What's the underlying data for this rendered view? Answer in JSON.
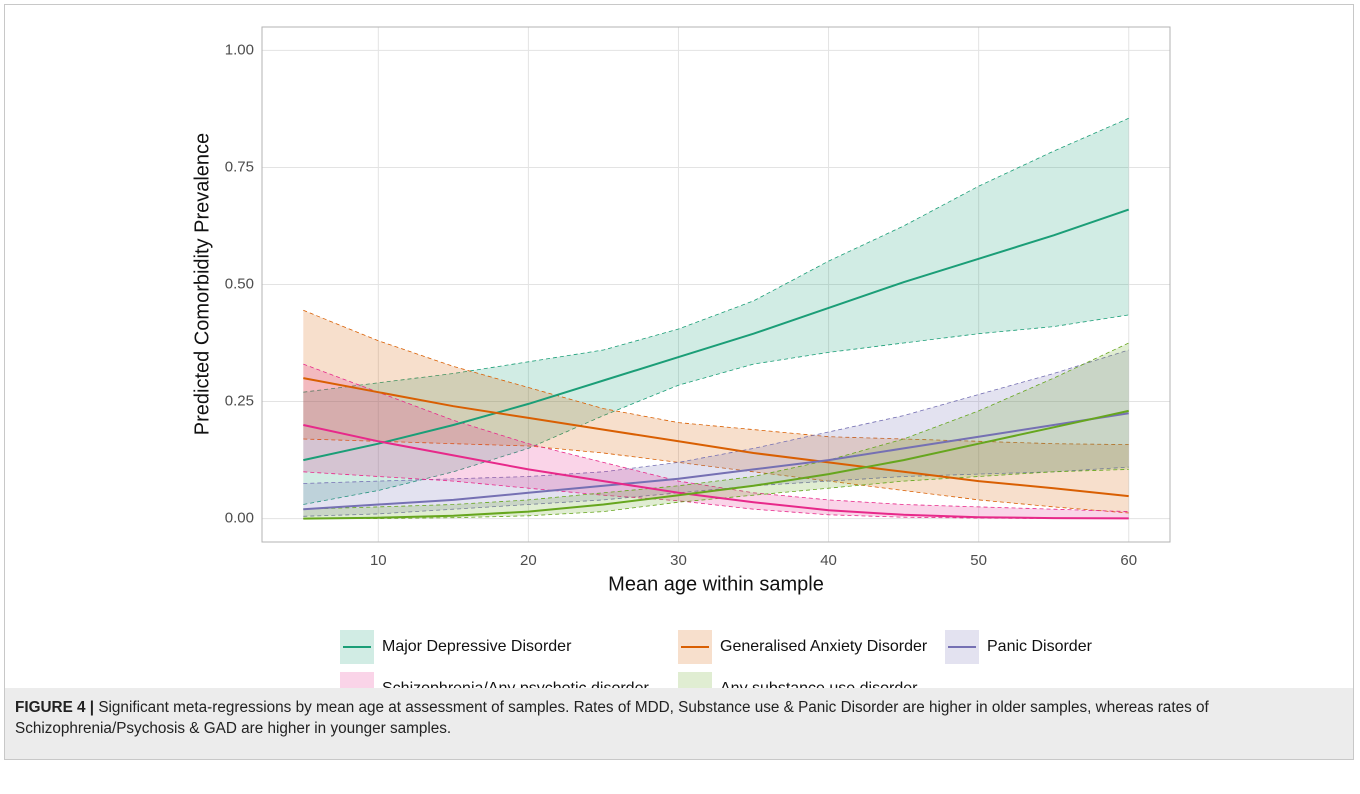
{
  "chart_data": {
    "type": "line",
    "xlabel": "Mean age within sample",
    "ylabel": "Predicted Comorbidity Prevalence",
    "x": [
      5,
      10,
      15,
      20,
      25,
      30,
      35,
      40,
      45,
      50,
      55,
      60
    ],
    "xlim": [
      2.25,
      62.75
    ],
    "xticks": [
      10,
      20,
      30,
      40,
      50,
      60
    ],
    "ylim": [
      -0.05,
      1.05
    ],
    "yticks": [
      {
        "value": 0,
        "label": "0.00"
      },
      {
        "value": 0.25,
        "label": "0.25"
      },
      {
        "value": 0.5,
        "label": "0.50"
      },
      {
        "value": 0.75,
        "label": "0.75"
      },
      {
        "value": 1,
        "label": "1.00"
      }
    ],
    "grid": true,
    "series": [
      {
        "name": "Major Depressive Disorder",
        "color": "#1b9e77",
        "values": [
          0.125,
          0.16,
          0.2,
          0.245,
          0.295,
          0.345,
          0.395,
          0.45,
          0.505,
          0.555,
          0.605,
          0.66
        ],
        "lower": [
          0.03,
          0.06,
          0.1,
          0.15,
          0.22,
          0.285,
          0.33,
          0.355,
          0.375,
          0.395,
          0.41,
          0.435
        ],
        "upper": [
          0.27,
          0.29,
          0.31,
          0.335,
          0.36,
          0.405,
          0.465,
          0.55,
          0.625,
          0.71,
          0.785,
          0.855
        ]
      },
      {
        "name": "Generalised Anxiety Disorder",
        "color": "#d95f02",
        "values": [
          0.3,
          0.27,
          0.24,
          0.215,
          0.19,
          0.165,
          0.14,
          0.12,
          0.1,
          0.08,
          0.065,
          0.048
        ],
        "lower": [
          0.17,
          0.165,
          0.16,
          0.155,
          0.14,
          0.12,
          0.1,
          0.08,
          0.06,
          0.04,
          0.025,
          0.012
        ],
        "upper": [
          0.445,
          0.38,
          0.325,
          0.28,
          0.235,
          0.205,
          0.19,
          0.175,
          0.17,
          0.165,
          0.16,
          0.158
        ]
      },
      {
        "name": "Panic Disorder",
        "color": "#7570b3",
        "values": [
          0.02,
          0.03,
          0.04,
          0.055,
          0.07,
          0.085,
          0.105,
          0.125,
          0.15,
          0.175,
          0.2,
          0.225
        ],
        "lower": [
          0.005,
          0.01,
          0.02,
          0.03,
          0.04,
          0.055,
          0.07,
          0.08,
          0.09,
          0.095,
          0.1,
          0.11
        ],
        "upper": [
          0.075,
          0.08,
          0.085,
          0.09,
          0.1,
          0.12,
          0.15,
          0.185,
          0.22,
          0.265,
          0.31,
          0.36
        ]
      },
      {
        "name": "Schizophrenia/Any psychotic disorder",
        "color": "#e7298a",
        "values": [
          0.2,
          0.165,
          0.135,
          0.105,
          0.08,
          0.055,
          0.035,
          0.018,
          0.008,
          0.003,
          0.001,
          0.0005
        ],
        "lower": [
          0.1,
          0.09,
          0.08,
          0.065,
          0.05,
          0.038,
          0.02,
          0.008,
          0.003,
          0.001,
          0,
          0
        ],
        "upper": [
          0.33,
          0.27,
          0.21,
          0.16,
          0.12,
          0.08,
          0.055,
          0.04,
          0.03,
          0.025,
          0.02,
          0.015
        ]
      },
      {
        "name": "Any substance use disorder",
        "color": "#66a61e",
        "values": [
          0,
          0.002,
          0.006,
          0.015,
          0.03,
          0.05,
          0.07,
          0.095,
          0.125,
          0.16,
          0.195,
          0.23
        ],
        "lower": [
          0,
          0,
          0.002,
          0.006,
          0.015,
          0.035,
          0.05,
          0.065,
          0.08,
          0.09,
          0.1,
          0.105
        ],
        "upper": [
          0.02,
          0.025,
          0.03,
          0.04,
          0.055,
          0.07,
          0.09,
          0.125,
          0.17,
          0.23,
          0.3,
          0.375
        ]
      }
    ]
  },
  "caption": {
    "label": "FIGURE 4 |",
    "text": "Significant meta-regressions by mean age at assessment of samples. Rates of MDD, Substance use & Panic Disorder are higher in older samples, whereas rates of Schizophrenia/Psychosis & GAD are higher in younger samples."
  }
}
